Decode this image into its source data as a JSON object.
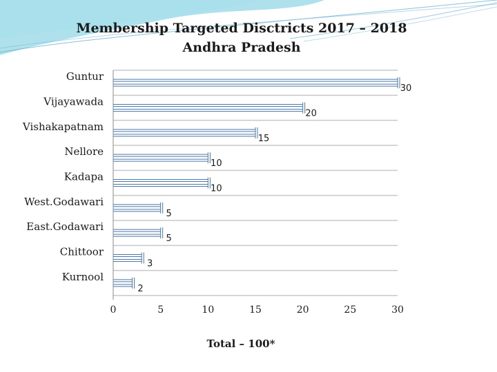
{
  "chart_data": {
    "type": "bar",
    "orientation": "horizontal",
    "title": "Membership Targeted Disctricts 2017 – 2018",
    "subtitle": "Andhra Pradesh",
    "categories": [
      "Guntur",
      "Vijayawada",
      "Vishakapatnam",
      "Nellore",
      "Kadapa",
      "West.Godawari",
      "East.Godawari",
      "Chittoor",
      "Kurnool"
    ],
    "values": [
      30,
      20,
      15,
      10,
      10,
      5,
      5,
      3,
      2
    ],
    "data_labels": [
      "30",
      "20",
      "15",
      "10",
      "10",
      "5",
      "5",
      "3",
      "2"
    ],
    "xlim": [
      0,
      30
    ],
    "xticks": [
      "0",
      "5",
      "10",
      "15",
      "20",
      "25",
      "30"
    ],
    "xlabel": "Total – 100*",
    "grid": "horizontal",
    "colors": {
      "bar_line": "#4a78a8",
      "grid": "#c8c8c8",
      "bar_fill": "#ffffff"
    }
  }
}
